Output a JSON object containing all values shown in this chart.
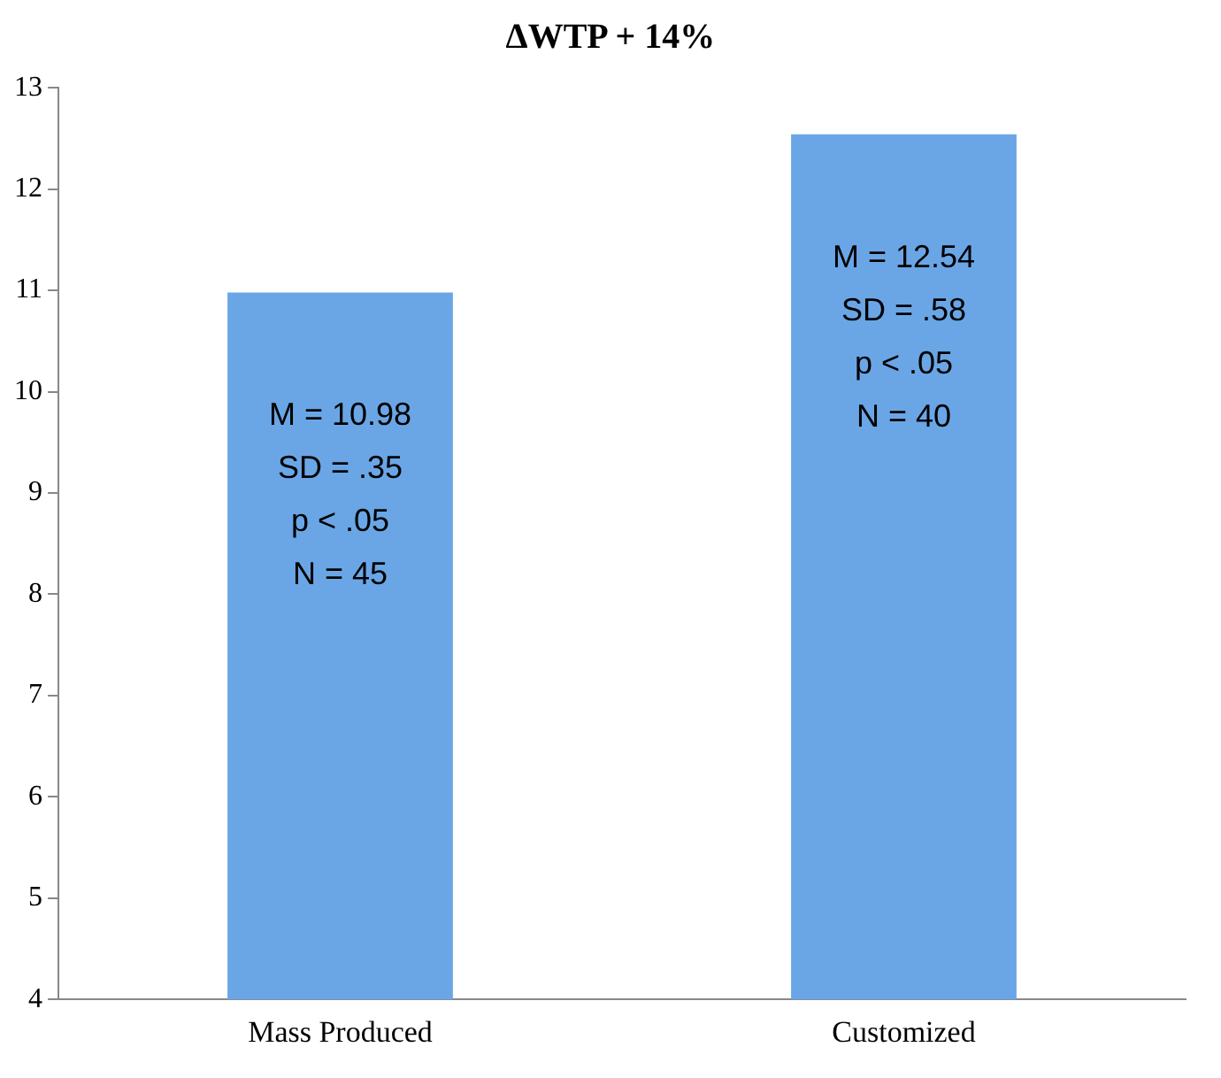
{
  "chart_data": {
    "type": "bar",
    "title": "ΔWTP + 14%",
    "categories": [
      "Mass Produced",
      "Customized"
    ],
    "values": [
      10.98,
      12.54
    ],
    "value_labels": [
      "M = 10.98\nSD = .35\np < .05\nN = 45",
      "M = 12.54\nSD = .58\np < .05\nN = 40"
    ],
    "color": "#6aa6e6",
    "ylim": [
      4,
      13
    ],
    "yticks": [
      4,
      5,
      6,
      7,
      8,
      9,
      10,
      11,
      12,
      13
    ],
    "grid": false
  }
}
